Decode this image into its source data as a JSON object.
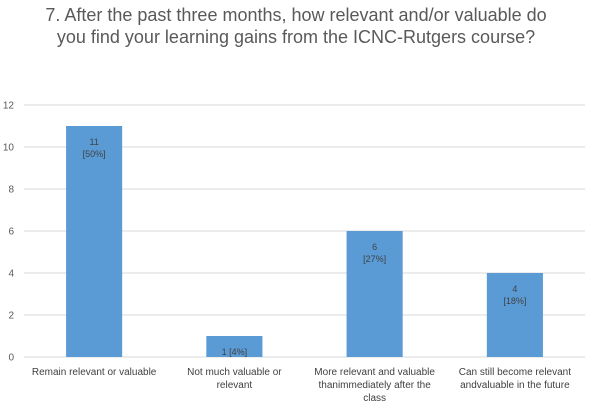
{
  "chart_data": {
    "type": "bar",
    "title": "7. After the past three months, how relevant and/or valuable do you find your learning gains from the ICNC-Rutgers course?",
    "categories": [
      [
        "Remain relevant or valuable"
      ],
      [
        "Not much valuable or",
        "relevant"
      ],
      [
        "More relevant and valuable",
        "thanimmediately after the",
        "class"
      ],
      [
        "Can still become relevant",
        "andvaluable in the future"
      ]
    ],
    "values": [
      11,
      1,
      6,
      4
    ],
    "data_labels": [
      [
        "11",
        "[50%]"
      ],
      [
        "1 [4%]"
      ],
      [
        "6",
        "[27%]"
      ],
      [
        "4",
        "[18%]"
      ]
    ],
    "y_ticks": [
      "0",
      "2",
      "4",
      "6",
      "8",
      "10",
      "12"
    ],
    "ylim": [
      0,
      12
    ],
    "grid": true,
    "legend": "none",
    "bar_color": "#5b9bd5",
    "grid_color": "#d9d9d9"
  }
}
